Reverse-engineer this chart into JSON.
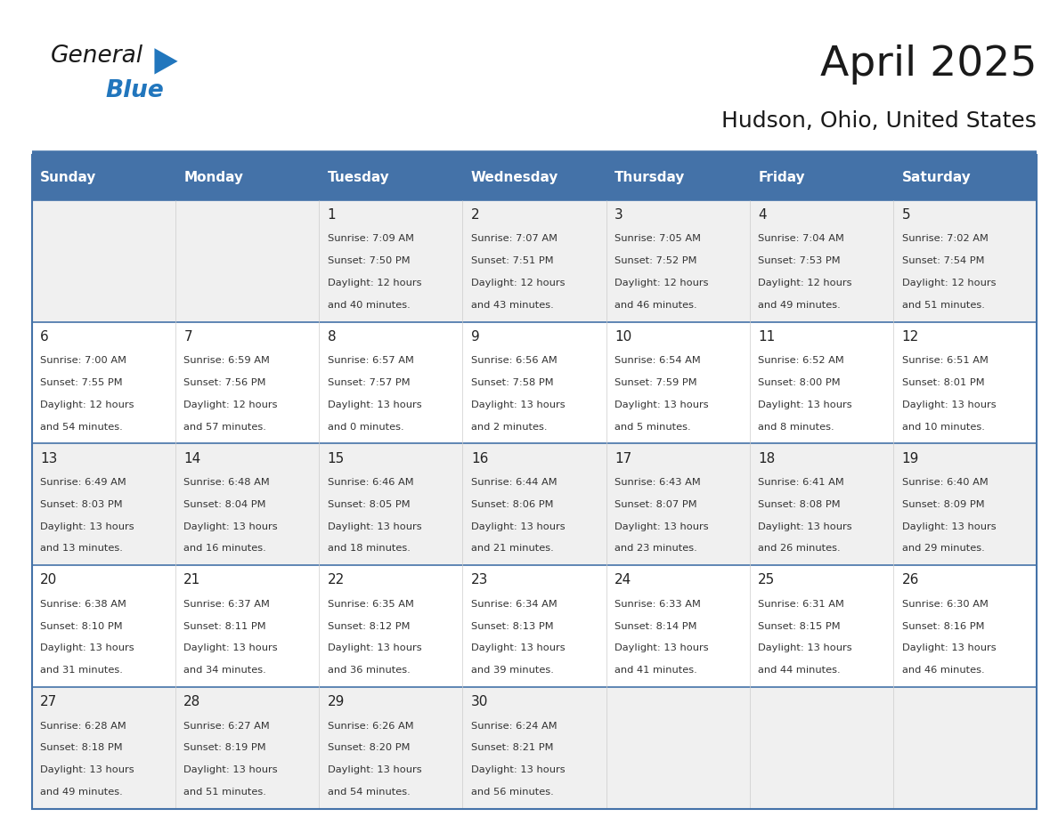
{
  "title": "April 2025",
  "subtitle": "Hudson, Ohio, United States",
  "days_of_week": [
    "Sunday",
    "Monday",
    "Tuesday",
    "Wednesday",
    "Thursday",
    "Friday",
    "Saturday"
  ],
  "header_bg": "#4472a8",
  "header_text": "#ffffff",
  "row_bg_even": "#f0f0f0",
  "row_bg_odd": "#ffffff",
  "border_color": "#4472a8",
  "text_color": "#333333",
  "date_color": "#222222",
  "calendar": [
    [
      {
        "day": null,
        "sunrise": null,
        "sunset": null,
        "daylight": null
      },
      {
        "day": null,
        "sunrise": null,
        "sunset": null,
        "daylight": null
      },
      {
        "day": 1,
        "sunrise": "7:09 AM",
        "sunset": "7:50 PM",
        "daylight": "12 hours\nand 40 minutes."
      },
      {
        "day": 2,
        "sunrise": "7:07 AM",
        "sunset": "7:51 PM",
        "daylight": "12 hours\nand 43 minutes."
      },
      {
        "day": 3,
        "sunrise": "7:05 AM",
        "sunset": "7:52 PM",
        "daylight": "12 hours\nand 46 minutes."
      },
      {
        "day": 4,
        "sunrise": "7:04 AM",
        "sunset": "7:53 PM",
        "daylight": "12 hours\nand 49 minutes."
      },
      {
        "day": 5,
        "sunrise": "7:02 AM",
        "sunset": "7:54 PM",
        "daylight": "12 hours\nand 51 minutes."
      }
    ],
    [
      {
        "day": 6,
        "sunrise": "7:00 AM",
        "sunset": "7:55 PM",
        "daylight": "12 hours\nand 54 minutes."
      },
      {
        "day": 7,
        "sunrise": "6:59 AM",
        "sunset": "7:56 PM",
        "daylight": "12 hours\nand 57 minutes."
      },
      {
        "day": 8,
        "sunrise": "6:57 AM",
        "sunset": "7:57 PM",
        "daylight": "13 hours\nand 0 minutes."
      },
      {
        "day": 9,
        "sunrise": "6:56 AM",
        "sunset": "7:58 PM",
        "daylight": "13 hours\nand 2 minutes."
      },
      {
        "day": 10,
        "sunrise": "6:54 AM",
        "sunset": "7:59 PM",
        "daylight": "13 hours\nand 5 minutes."
      },
      {
        "day": 11,
        "sunrise": "6:52 AM",
        "sunset": "8:00 PM",
        "daylight": "13 hours\nand 8 minutes."
      },
      {
        "day": 12,
        "sunrise": "6:51 AM",
        "sunset": "8:01 PM",
        "daylight": "13 hours\nand 10 minutes."
      }
    ],
    [
      {
        "day": 13,
        "sunrise": "6:49 AM",
        "sunset": "8:03 PM",
        "daylight": "13 hours\nand 13 minutes."
      },
      {
        "day": 14,
        "sunrise": "6:48 AM",
        "sunset": "8:04 PM",
        "daylight": "13 hours\nand 16 minutes."
      },
      {
        "day": 15,
        "sunrise": "6:46 AM",
        "sunset": "8:05 PM",
        "daylight": "13 hours\nand 18 minutes."
      },
      {
        "day": 16,
        "sunrise": "6:44 AM",
        "sunset": "8:06 PM",
        "daylight": "13 hours\nand 21 minutes."
      },
      {
        "day": 17,
        "sunrise": "6:43 AM",
        "sunset": "8:07 PM",
        "daylight": "13 hours\nand 23 minutes."
      },
      {
        "day": 18,
        "sunrise": "6:41 AM",
        "sunset": "8:08 PM",
        "daylight": "13 hours\nand 26 minutes."
      },
      {
        "day": 19,
        "sunrise": "6:40 AM",
        "sunset": "8:09 PM",
        "daylight": "13 hours\nand 29 minutes."
      }
    ],
    [
      {
        "day": 20,
        "sunrise": "6:38 AM",
        "sunset": "8:10 PM",
        "daylight": "13 hours\nand 31 minutes."
      },
      {
        "day": 21,
        "sunrise": "6:37 AM",
        "sunset": "8:11 PM",
        "daylight": "13 hours\nand 34 minutes."
      },
      {
        "day": 22,
        "sunrise": "6:35 AM",
        "sunset": "8:12 PM",
        "daylight": "13 hours\nand 36 minutes."
      },
      {
        "day": 23,
        "sunrise": "6:34 AM",
        "sunset": "8:13 PM",
        "daylight": "13 hours\nand 39 minutes."
      },
      {
        "day": 24,
        "sunrise": "6:33 AM",
        "sunset": "8:14 PM",
        "daylight": "13 hours\nand 41 minutes."
      },
      {
        "day": 25,
        "sunrise": "6:31 AM",
        "sunset": "8:15 PM",
        "daylight": "13 hours\nand 44 minutes."
      },
      {
        "day": 26,
        "sunrise": "6:30 AM",
        "sunset": "8:16 PM",
        "daylight": "13 hours\nand 46 minutes."
      }
    ],
    [
      {
        "day": 27,
        "sunrise": "6:28 AM",
        "sunset": "8:18 PM",
        "daylight": "13 hours\nand 49 minutes."
      },
      {
        "day": 28,
        "sunrise": "6:27 AM",
        "sunset": "8:19 PM",
        "daylight": "13 hours\nand 51 minutes."
      },
      {
        "day": 29,
        "sunrise": "6:26 AM",
        "sunset": "8:20 PM",
        "daylight": "13 hours\nand 54 minutes."
      },
      {
        "day": 30,
        "sunrise": "6:24 AM",
        "sunset": "8:21 PM",
        "daylight": "13 hours\nand 56 minutes."
      },
      {
        "day": null,
        "sunrise": null,
        "sunset": null,
        "daylight": null
      },
      {
        "day": null,
        "sunrise": null,
        "sunset": null,
        "daylight": null
      },
      {
        "day": null,
        "sunrise": null,
        "sunset": null,
        "daylight": null
      }
    ]
  ],
  "logo_text_general": "General",
  "logo_text_blue": "Blue",
  "logo_color_general": "#1a1a1a",
  "logo_color_blue": "#2176bd",
  "logo_triangle_color": "#2176bd"
}
